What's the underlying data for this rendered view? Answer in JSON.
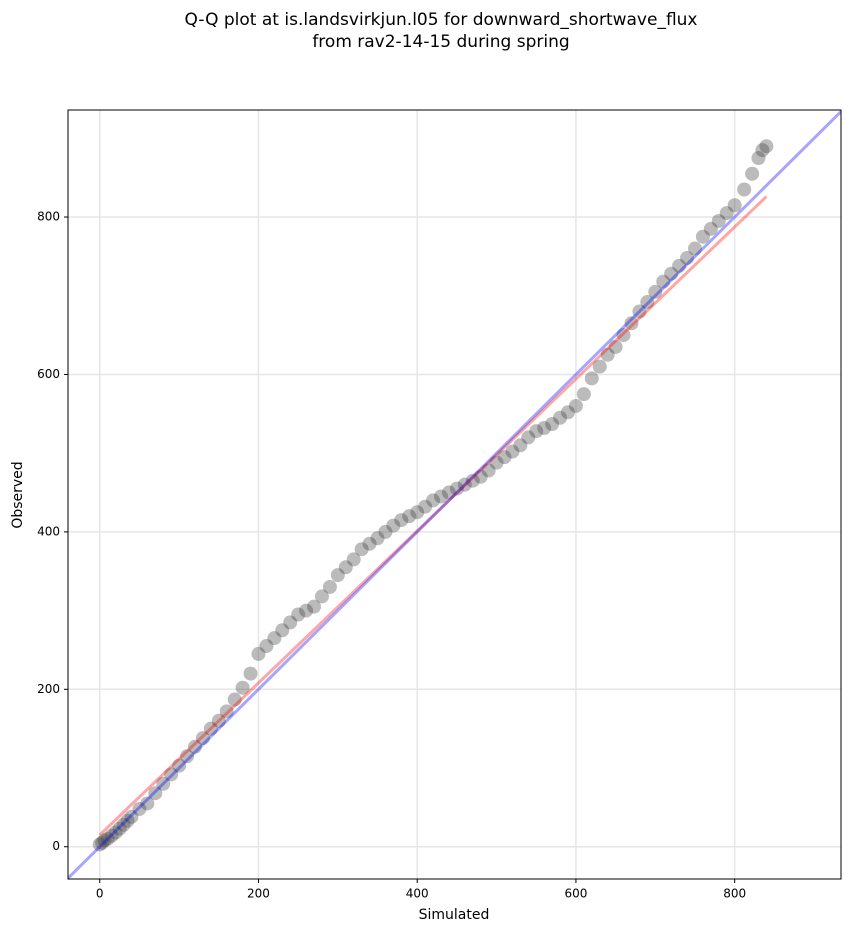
{
  "chart_data": {
    "type": "scatter",
    "title": [
      "Q-Q plot at is.landsvirkjun.l05 for downward_shortwave_flux",
      "from rav2-14-15 during spring"
    ],
    "x_label": "Simulated",
    "y_label": "Observed",
    "xlim": [
      -40,
      934
    ],
    "ylim": [
      -41,
      936
    ],
    "xticks": [
      0,
      200,
      400,
      600,
      800
    ],
    "yticks": [
      0,
      200,
      400,
      600,
      800
    ],
    "grid": true,
    "series": [
      {
        "type": "scatter",
        "color": "#3c3c3c",
        "alpha": 0.35,
        "x": [
          0,
          3,
          6,
          10,
          15,
          20,
          25,
          30,
          35,
          40,
          50,
          60,
          70,
          80,
          90,
          100,
          110,
          120,
          130,
          140,
          150,
          160,
          170,
          180,
          190,
          200,
          210,
          220,
          230,
          240,
          250,
          260,
          270,
          280,
          290,
          300,
          310,
          320,
          330,
          340,
          350,
          360,
          370,
          380,
          390,
          400,
          410,
          420,
          430,
          440,
          450,
          460,
          470,
          480,
          490,
          500,
          510,
          520,
          530,
          540,
          550,
          560,
          570,
          580,
          590,
          600,
          610,
          620,
          630,
          640,
          650,
          660,
          670,
          680,
          690,
          700,
          710,
          720,
          730,
          740,
          750,
          760,
          770,
          780,
          790,
          800,
          812,
          822,
          830,
          835,
          840
        ],
        "values": [
          3,
          5,
          8,
          10,
          14,
          18,
          23,
          28,
          33,
          38,
          48,
          55,
          68,
          80,
          92,
          103,
          115,
          127,
          138,
          150,
          160,
          172,
          187,
          202,
          220,
          245,
          255,
          265,
          275,
          285,
          295,
          300,
          305,
          318,
          330,
          345,
          355,
          365,
          378,
          385,
          392,
          400,
          408,
          415,
          420,
          425,
          432,
          440,
          445,
          450,
          455,
          460,
          465,
          470,
          478,
          488,
          495,
          502,
          510,
          520,
          528,
          532,
          537,
          545,
          552,
          560,
          575,
          595,
          610,
          625,
          635,
          650,
          665,
          680,
          692,
          705,
          718,
          728,
          738,
          748,
          760,
          775,
          785,
          795,
          805,
          815,
          835,
          855,
          875,
          885,
          890
        ]
      },
      {
        "type": "line",
        "color": "#ff0000",
        "alpha": 0.35,
        "x": [
          0,
          840
        ],
        "values": [
          15,
          826
        ]
      },
      {
        "type": "line",
        "color": "#0000ff",
        "alpha": 0.35,
        "x": [
          -40,
          934
        ],
        "values": [
          -40,
          934
        ]
      }
    ]
  }
}
